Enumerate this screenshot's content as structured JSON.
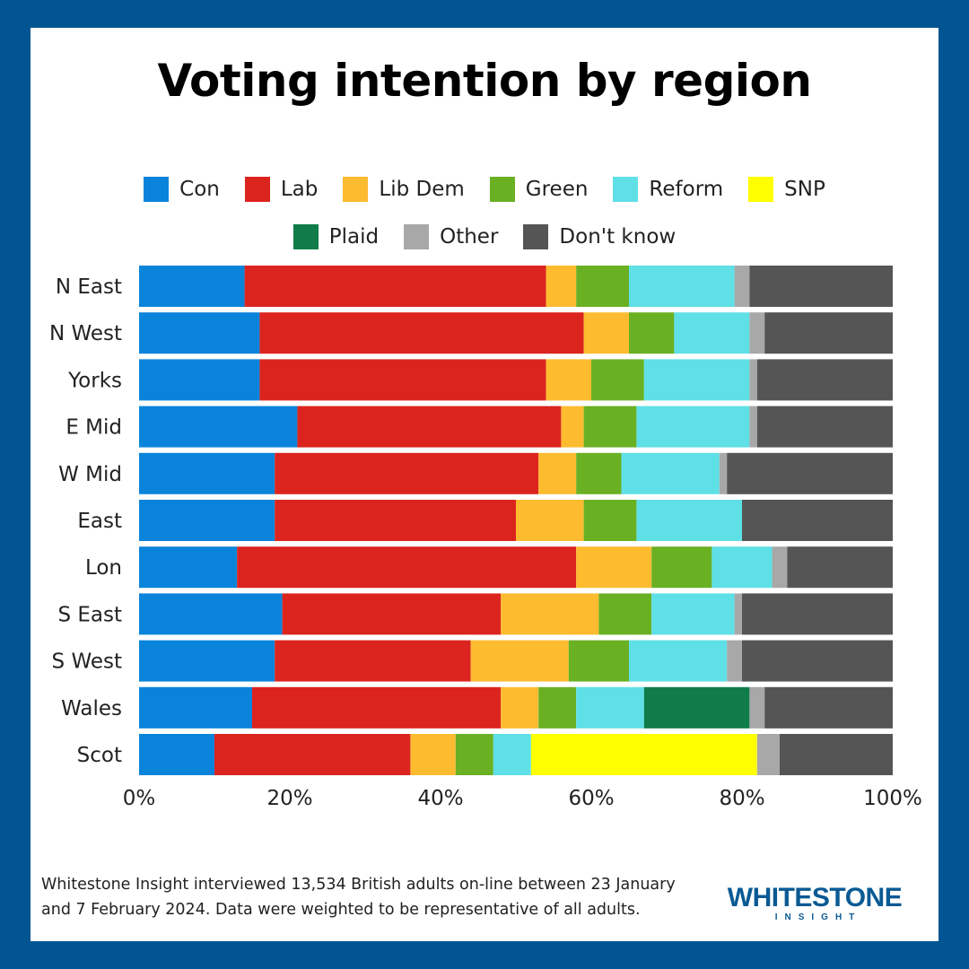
{
  "colors": {
    "background": "#015592",
    "panel": "#ffffff",
    "logo": "#0a5a94"
  },
  "chart_data": {
    "type": "bar",
    "orientation": "horizontal",
    "stacked": true,
    "title": "Voting intention by region",
    "xlabel": "",
    "ylabel": "",
    "xlim": [
      0,
      100
    ],
    "x_ticks": [
      "0%",
      "20%",
      "40%",
      "60%",
      "80%",
      "100%"
    ],
    "legend_position": "top-center",
    "categories": [
      "N East",
      "N West",
      "Yorks",
      "E Mid",
      "W Mid",
      "East",
      "Lon",
      "S East",
      "S West",
      "Wales",
      "Scot"
    ],
    "series": [
      {
        "name": "Con",
        "color": "#0a84db",
        "values": [
          14,
          16,
          16,
          21,
          18,
          18,
          13,
          19,
          18,
          15,
          10
        ]
      },
      {
        "name": "Lab",
        "color": "#dc241f",
        "values": [
          40,
          43,
          38,
          35,
          35,
          32,
          45,
          29,
          26,
          33,
          26
        ]
      },
      {
        "name": "Lib Dem",
        "color": "#fdbb30",
        "values": [
          4,
          6,
          6,
          3,
          5,
          9,
          10,
          13,
          13,
          5,
          6
        ]
      },
      {
        "name": "Green",
        "color": "#6ab023",
        "values": [
          7,
          6,
          7,
          7,
          6,
          7,
          8,
          7,
          8,
          5,
          5
        ]
      },
      {
        "name": "Reform",
        "color": "#5ee0e6",
        "values": [
          14,
          10,
          14,
          15,
          13,
          14,
          8,
          11,
          13,
          9,
          5
        ]
      },
      {
        "name": "SNP",
        "color": "#ffff00",
        "values": [
          0,
          0,
          0,
          0,
          0,
          0,
          0,
          0,
          0,
          0,
          30
        ]
      },
      {
        "name": "Plaid",
        "color": "#0f7c4a",
        "values": [
          0,
          0,
          0,
          0,
          0,
          0,
          0,
          0,
          0,
          14,
          0
        ]
      },
      {
        "name": "Other",
        "color": "#a8a8a8",
        "values": [
          2,
          2,
          1,
          1,
          1,
          0,
          2,
          1,
          2,
          2,
          3
        ]
      },
      {
        "name": "Don't know",
        "color": "#555555",
        "values": [
          19,
          17,
          18,
          18,
          22,
          20,
          14,
          20,
          20,
          17,
          15
        ]
      }
    ]
  },
  "footnote": {
    "line1": "Whitestone Insight interviewed 13,534 British adults on-line between 23 January",
    "line2": "and 7 February 2024. Data were weighted to be representative of all adults."
  },
  "logo": {
    "main": "WHITESTONE",
    "sub": "INSIGHT"
  }
}
